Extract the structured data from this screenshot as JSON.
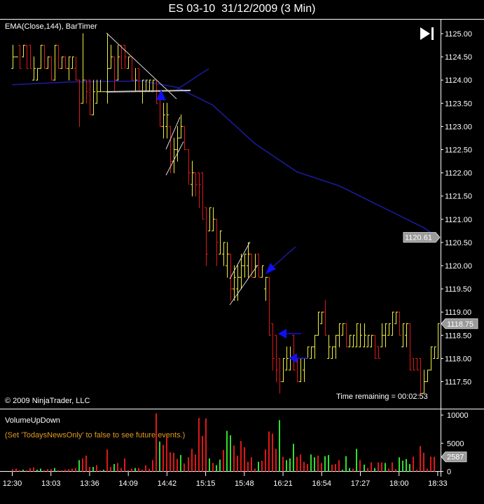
{
  "window": {
    "title": "ES 03-10  31/12/2009 (3 Min)"
  },
  "price_panel": {
    "indicator_label": "EMA(Close,144), BarTimer",
    "copyright": "© 2009 NinjaTrader, LLC",
    "time_remaining": "Time remaining = 00:02:53",
    "go_to_end_icon": "skip-to-end-icon"
  },
  "volume_panel": {
    "indicator_label": "VolumeUpDown",
    "news_notice": "(Set 'TodaysNewsOnly' to false to see future events.)"
  },
  "colors": {
    "background": "#000000",
    "up_bar": "#f0f040",
    "down_bar": "#e01818",
    "volume_up": "#30e030",
    "volume_down": "#e01818",
    "ema": "#1a1a9a",
    "notice": "#e09a20",
    "drawing_arrow": "#1010f0"
  },
  "chart_data": [
    {
      "type": "ohlc",
      "series_name": "ES 03-10",
      "bar_interval": "3 Min",
      "ohlc_fields": [
        "open",
        "high",
        "low",
        "close"
      ],
      "ylim": [
        1117.0,
        1125.3
      ],
      "y_ticks": [
        "1125.00",
        "1124.50",
        "1124.00",
        "1123.50",
        "1123.00",
        "1122.50",
        "1122.00",
        "1121.50",
        "1121.00",
        "1120.50",
        "1120.00",
        "1119.50",
        "1119.00",
        "1118.50",
        "1118.00",
        "1117.50"
      ],
      "x_ticks": [
        "12:30",
        "13:03",
        "13:36",
        "14:09",
        "14:42",
        "15:15",
        "15:48",
        "16:21",
        "16:54",
        "17:27",
        "18:00",
        "18:33"
      ],
      "last_price_tag": "1118.75",
      "ema_tag": "1120.61",
      "ema_label": "EMA(Close,144)",
      "ema_points": [
        [
          0,
          1123.9
        ],
        [
          17,
          1123.96
        ],
        [
          37,
          1123.98
        ],
        [
          47,
          1123.84
        ],
        [
          57,
          1123.46
        ],
        [
          69,
          1122.63
        ],
        [
          81,
          1122.02
        ],
        [
          93,
          1121.72
        ],
        [
          105,
          1121.27
        ],
        [
          117,
          1120.82
        ],
        [
          121,
          1120.61
        ]
      ],
      "bars": [
        [
          1124.25,
          1124.75,
          1124.25,
          1124.5
        ],
        [
          1124.5,
          1124.5,
          1124.5,
          1124.5
        ],
        [
          1124.75,
          1124.75,
          1124.25,
          1124.25
        ],
        [
          1124.5,
          1124.75,
          1124.5,
          1124.75
        ],
        [
          1124.75,
          1124.75,
          1124.25,
          1124.25
        ],
        [
          1124.75,
          1124.75,
          1124.25,
          1124.25
        ],
        [
          1124.0,
          1124.5,
          1124.0,
          1124.25
        ],
        [
          1124.0,
          1124.25,
          1124.0,
          1124.25
        ],
        [
          1124.25,
          1124.75,
          1124.25,
          1124.75
        ],
        [
          1124.75,
          1124.75,
          1124.25,
          1124.25
        ],
        [
          1124.25,
          1124.5,
          1124.25,
          1124.5
        ],
        [
          1124.5,
          1124.5,
          1124.0,
          1124.0
        ],
        [
          1124.0,
          1124.75,
          1124.0,
          1124.75
        ],
        [
          1124.75,
          1124.75,
          1124.25,
          1124.25
        ],
        [
          1124.25,
          1124.5,
          1124.25,
          1124.5
        ],
        [
          1124.5,
          1124.5,
          1124.25,
          1124.25
        ],
        [
          1124.25,
          1124.5,
          1124.0,
          1124.5
        ],
        [
          1124.25,
          1124.5,
          1124.25,
          1124.5
        ],
        [
          1124.25,
          1124.5,
          1124.0,
          1124.0
        ],
        [
          1124.0,
          1124.0,
          1123.0,
          1123.5
        ],
        [
          1123.5,
          1125.0,
          1123.5,
          1124.0
        ],
        [
          1124.0,
          1124.0,
          1123.5,
          1123.75
        ],
        [
          1124.0,
          1124.0,
          1123.25,
          1123.25
        ],
        [
          1123.25,
          1124.0,
          1123.25,
          1123.75
        ],
        [
          1123.5,
          1124.0,
          1123.5,
          1123.75
        ],
        [
          1123.75,
          1124.0,
          1123.75,
          1123.75
        ],
        [
          1123.75,
          1123.75,
          1123.75,
          1123.75
        ],
        [
          1123.75,
          1125.0,
          1123.5,
          1124.25
        ],
        [
          1124.25,
          1124.75,
          1124.25,
          1124.5
        ],
        [
          1124.5,
          1124.5,
          1123.75,
          1124.0
        ],
        [
          1124.0,
          1124.75,
          1124.0,
          1124.5
        ],
        [
          1124.75,
          1124.75,
          1124.25,
          1124.25
        ],
        [
          1124.75,
          1124.75,
          1124.25,
          1124.5
        ],
        [
          1124.25,
          1124.5,
          1124.25,
          1124.5
        ],
        [
          1124.5,
          1124.5,
          1124.0,
          1124.0
        ],
        [
          1123.75,
          1124.25,
          1123.75,
          1124.0
        ],
        [
          1124.25,
          1124.25,
          1123.75,
          1123.75
        ],
        [
          1123.75,
          1124.0,
          1123.5,
          1124.0
        ],
        [
          1123.75,
          1124.0,
          1123.75,
          1124.0
        ],
        [
          1123.75,
          1124.0,
          1123.75,
          1124.0
        ],
        [
          1123.75,
          1124.0,
          1123.75,
          1124.0
        ],
        [
          1124.0,
          1124.0,
          1123.5,
          1123.5
        ],
        [
          1123.75,
          1123.75,
          1123.0,
          1123.0
        ],
        [
          1123.0,
          1123.5,
          1122.75,
          1123.25
        ],
        [
          1123.0,
          1123.5,
          1122.75,
          1123.25
        ],
        [
          1123.0,
          1123.0,
          1122.0,
          1122.25
        ],
        [
          1122.25,
          1122.75,
          1122.0,
          1122.5
        ],
        [
          1122.5,
          1123.0,
          1122.25,
          1122.75
        ],
        [
          1122.75,
          1123.25,
          1122.75,
          1123.0
        ],
        [
          1123.0,
          1123.0,
          1122.5,
          1122.5
        ],
        [
          1122.5,
          1122.5,
          1121.75,
          1122.0
        ],
        [
          1121.75,
          1122.25,
          1121.5,
          1122.0
        ],
        [
          1122.0,
          1122.0,
          1121.5,
          1121.75
        ],
        [
          1122.0,
          1122.0,
          1121.25,
          1121.75
        ],
        [
          1122.0,
          1122.0,
          1121.0,
          1121.0
        ],
        [
          1121.25,
          1121.25,
          1120.0,
          1120.25
        ],
        [
          1120.75,
          1121.25,
          1120.75,
          1121.25
        ],
        [
          1120.75,
          1121.25,
          1120.75,
          1121.0
        ],
        [
          1121.0,
          1121.0,
          1120.0,
          1120.5
        ],
        [
          1120.25,
          1120.75,
          1120.25,
          1120.75
        ],
        [
          1120.25,
          1120.5,
          1120.0,
          1120.5
        ],
        [
          1120.0,
          1120.5,
          1119.75,
          1120.25
        ],
        [
          1120.25,
          1120.25,
          1119.25,
          1119.5
        ],
        [
          1119.5,
          1120.0,
          1119.25,
          1119.75
        ],
        [
          1119.5,
          1120.0,
          1119.25,
          1119.75
        ],
        [
          1119.75,
          1120.25,
          1119.5,
          1120.0
        ],
        [
          1120.0,
          1120.25,
          1119.75,
          1120.25
        ],
        [
          1120.0,
          1120.5,
          1119.75,
          1120.25
        ],
        [
          1120.25,
          1120.25,
          1119.75,
          1119.75
        ],
        [
          1119.75,
          1120.25,
          1119.75,
          1120.0
        ],
        [
          1120.25,
          1120.25,
          1119.75,
          1119.75
        ],
        [
          1119.75,
          1120.0,
          1119.75,
          1120.0
        ],
        [
          1119.5,
          1119.75,
          1119.25,
          1119.75
        ],
        [
          1119.75,
          1119.75,
          1118.5,
          1118.5
        ],
        [
          1118.75,
          1118.75,
          1117.75,
          1118.0
        ],
        [
          1118.5,
          1118.5,
          1117.5,
          1117.75
        ],
        [
          1118.0,
          1118.0,
          1117.25,
          1117.5
        ],
        [
          1117.5,
          1118.0,
          1117.5,
          1118.0
        ],
        [
          1117.75,
          1118.25,
          1117.75,
          1118.0
        ],
        [
          1117.75,
          1118.25,
          1117.75,
          1118.0
        ],
        [
          1118.5,
          1118.5,
          1117.75,
          1117.75
        ],
        [
          1118.0,
          1118.0,
          1117.5,
          1117.5
        ],
        [
          1117.5,
          1118.0,
          1117.5,
          1118.0
        ],
        [
          1117.75,
          1118.0,
          1117.5,
          1118.0
        ],
        [
          1118.0,
          1118.25,
          1118.0,
          1118.25
        ],
        [
          1118.0,
          1118.25,
          1118.0,
          1118.25
        ],
        [
          1118.25,
          1118.5,
          1118.0,
          1118.5
        ],
        [
          1118.5,
          1119.0,
          1118.5,
          1119.0
        ],
        [
          1118.75,
          1119.0,
          1118.75,
          1119.0
        ],
        [
          1119.0,
          1119.25,
          1118.5,
          1118.5
        ],
        [
          1118.0,
          1118.5,
          1118.0,
          1118.25
        ],
        [
          1118.0,
          1118.25,
          1118.0,
          1118.25
        ],
        [
          1118.25,
          1118.5,
          1118.0,
          1118.5
        ],
        [
          1118.5,
          1118.75,
          1118.25,
          1118.75
        ],
        [
          1118.5,
          1118.75,
          1118.5,
          1118.75
        ],
        [
          1118.75,
          1118.75,
          1118.25,
          1118.25
        ],
        [
          1118.25,
          1118.5,
          1118.25,
          1118.5
        ],
        [
          1118.25,
          1118.5,
          1118.25,
          1118.5
        ],
        [
          1118.25,
          1118.75,
          1118.25,
          1118.75
        ],
        [
          1118.25,
          1118.75,
          1118.25,
          1118.5
        ],
        [
          1118.25,
          1118.75,
          1118.25,
          1118.5
        ],
        [
          1118.25,
          1118.5,
          1118.25,
          1118.5
        ],
        [
          1118.25,
          1118.5,
          1118.25,
          1118.5
        ],
        [
          1118.5,
          1118.5,
          1118.0,
          1118.0
        ],
        [
          1118.25,
          1118.25,
          1118.0,
          1118.0
        ],
        [
          1118.25,
          1118.75,
          1118.25,
          1118.5
        ],
        [
          1118.5,
          1118.75,
          1118.25,
          1118.75
        ],
        [
          1118.5,
          1118.75,
          1118.5,
          1118.75
        ],
        [
          1118.5,
          1119.0,
          1118.5,
          1119.0
        ],
        [
          1118.75,
          1119.0,
          1118.75,
          1119.0
        ],
        [
          1119.0,
          1119.0,
          1118.5,
          1118.5
        ],
        [
          1118.25,
          1118.75,
          1118.25,
          1118.75
        ],
        [
          1118.5,
          1118.75,
          1118.25,
          1118.75
        ],
        [
          1118.75,
          1118.75,
          1117.75,
          1117.75
        ],
        [
          1118.0,
          1118.0,
          1117.75,
          1117.75
        ],
        [
          1118.0,
          1118.0,
          1117.75,
          1117.75
        ],
        [
          1118.0,
          1118.0,
          1117.25,
          1117.25
        ],
        [
          1117.25,
          1117.75,
          1117.25,
          1117.5
        ],
        [
          1117.5,
          1117.75,
          1117.5,
          1117.75
        ],
        [
          1117.75,
          1118.25,
          1117.75,
          1118.25
        ],
        [
          1118.0,
          1118.25,
          1118.0,
          1118.25
        ],
        [
          1118.0,
          1118.75,
          1118.0,
          1118.75
        ]
      ]
    },
    {
      "type": "bar",
      "series_name": "VolumeUpDown",
      "ylim": [
        0,
        10500
      ],
      "y_ticks": [
        "10000",
        "5000",
        "0"
      ],
      "last_value_tag": "2587",
      "values": [
        400,
        500,
        200,
        300,
        200,
        600,
        700,
        300,
        500,
        200,
        400,
        400,
        600,
        200,
        200,
        300,
        400,
        500,
        600,
        2000,
        2300,
        2800,
        800,
        800,
        1100,
        200,
        300,
        3900,
        800,
        1300,
        1500,
        600,
        2300,
        200,
        500,
        600,
        600,
        300,
        1100,
        500,
        2000,
        10300,
        5300,
        4700,
        6100,
        3400,
        3300,
        2200,
        2900,
        1400,
        2500,
        4000,
        3000,
        9500,
        6300,
        9400,
        2300,
        1500,
        1100,
        2100,
        3800,
        7200,
        6400,
        4600,
        2800,
        5400,
        4300,
        1700,
        2500,
        500,
        1700,
        1900,
        3900,
        7100,
        6700,
        4000,
        9100,
        2600,
        2000,
        2300,
        4900,
        2600,
        3000,
        1700,
        1300,
        3000,
        2500,
        2800,
        1500,
        2700,
        2900,
        1200,
        1300,
        2000,
        300,
        2700,
        600,
        500,
        4000,
        2000,
        1200,
        600,
        1600,
        600,
        1600,
        1600,
        1500,
        500,
        1600,
        400,
        2500,
        1900,
        2200,
        1300,
        2600,
        300,
        4500,
        3300,
        500,
        2600,
        2587
      ],
      "direction": "ddduddduuddduddddddudddudduddudddddudddddduddddduddddddduduuduuddddddduddddduduuudddduudduuddduuudududdudduddduuuu"
    }
  ]
}
